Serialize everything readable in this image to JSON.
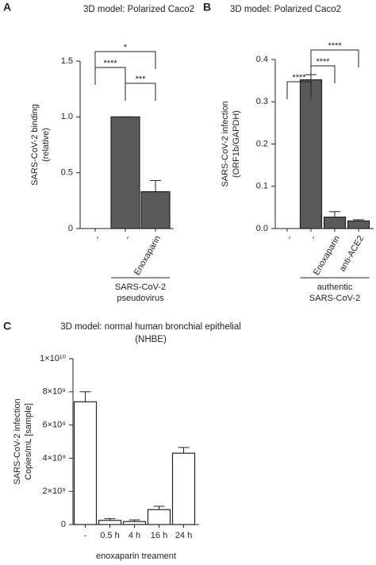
{
  "chart_data": [
    {
      "type": "bar",
      "panel": "A",
      "title": "3D model: Polarized Caco2",
      "ylabel": [
        "SARS-CoV-2 binding",
        "(relative)"
      ],
      "categories": [
        "-",
        "-",
        "Enoxaparin"
      ],
      "values": [
        0,
        1.0,
        0.33
      ],
      "errors": [
        0,
        0,
        0.1
      ],
      "color": "#5a5a5a",
      "ylim": [
        0,
        1.5
      ],
      "yticks": [
        0,
        0.5,
        {
          "value": 1,
          "label": "1.0"
        },
        1.5
      ],
      "brackets": [
        {
          "label": "*",
          "from": 0,
          "to": 2
        },
        {
          "label": "****",
          "from": 0,
          "to": 1
        },
        {
          "label": "***",
          "from": 1,
          "to": 2
        }
      ],
      "group": {
        "label": [
          "SARS-CoV-2",
          "pseudovirus"
        ],
        "from": 1,
        "to": 2
      }
    },
    {
      "type": "bar",
      "panel": "B",
      "title": "3D model: Polarized Caco2",
      "ylabel": [
        "SARS-CoV-2 infection",
        "(ORF1b/GAPDH)"
      ],
      "categories": [
        "-",
        "-",
        "Enoxaparin",
        "anti-ACE2"
      ],
      "values": [
        0,
        0.352,
        0.027,
        0.018
      ],
      "errors": [
        0,
        0.012,
        0.013,
        0.003
      ],
      "color": "#5a5a5a",
      "ylim": [
        0,
        0.4
      ],
      "yticks": [
        {
          "value": 0,
          "label": "0.0"
        },
        0.1,
        0.2,
        0.3,
        0.4
      ],
      "brackets": [
        {
          "label": "****",
          "from": 1,
          "to": 3
        },
        {
          "label": "****",
          "from": 1,
          "to": 2
        },
        {
          "label": "****",
          "from": 0,
          "to": 1
        }
      ],
      "group": {
        "label": [
          "authentic",
          "SARS-CoV-2"
        ],
        "from": 1,
        "to": 3
      }
    },
    {
      "type": "bar",
      "panel": "C",
      "title": [
        "3D model: normal human bronchial epithelial",
        "(NHBE)"
      ],
      "ylabel": [
        "SARS-CoV-2 infection",
        "Copies/mL [sample]"
      ],
      "xlabel": "enoxaparin treament",
      "categories": [
        "-",
        "0.5 h",
        "4 h",
        "16 h",
        "24 h"
      ],
      "values": [
        7400000000,
        250000000,
        180000000,
        900000000,
        4300000000
      ],
      "errors": [
        600000000,
        100000000,
        100000000,
        200000000,
        350000000
      ],
      "color": "#ffffff",
      "ylim": [
        0,
        10000000000
      ],
      "yticks": [
        0,
        {
          "value": 2000000000,
          "label": "2×10⁹"
        },
        {
          "value": 4000000000,
          "label": "4×10⁹"
        },
        {
          "value": 6000000000,
          "label": "6×10⁹"
        },
        {
          "value": 8000000000,
          "label": "8×10⁹"
        },
        {
          "value": 10000000000,
          "label": "1×10¹⁰"
        }
      ]
    }
  ]
}
